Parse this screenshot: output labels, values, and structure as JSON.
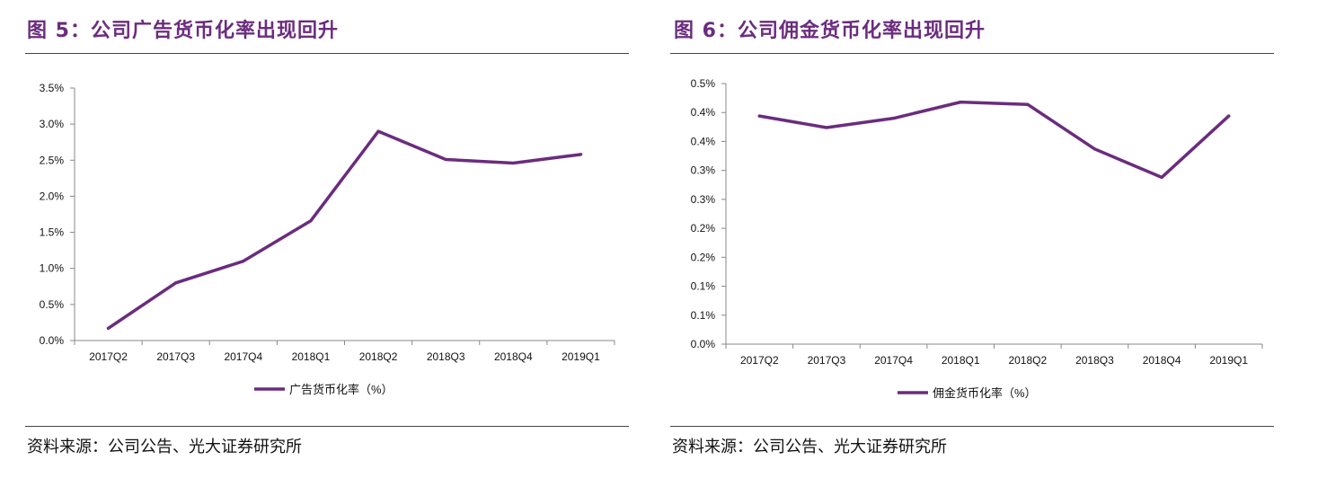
{
  "charts": [
    {
      "title": "图 5：公司广告货币化率出现回升",
      "source": "资料来源：公司公告、光大证券研究所",
      "chart_data": {
        "type": "line",
        "categories": [
          "2017Q2",
          "2017Q3",
          "2017Q4",
          "2018Q1",
          "2018Q2",
          "2018Q3",
          "2018Q4",
          "2019Q1"
        ],
        "series": [
          {
            "name": "广告货币化率（%）",
            "values": [
              0.17,
              0.8,
              1.1,
              1.66,
              2.9,
              2.51,
              2.46,
              2.58
            ],
            "color": "#6b2c7e"
          }
        ],
        "y_tick_labels": [
          "0.0%",
          "0.5%",
          "1.0%",
          "1.5%",
          "2.0%",
          "2.5%",
          "3.0%",
          "3.5%"
        ],
        "ylim": [
          0,
          3.5
        ],
        "grid": false,
        "legend_position": "bottom"
      }
    },
    {
      "title": "图 6：公司佣金货币化率出现回升",
      "source": "资料来源：公司公告、光大证券研究所",
      "chart_data": {
        "type": "line",
        "categories": [
          "2017Q2",
          "2017Q3",
          "2017Q4",
          "2018Q1",
          "2018Q2",
          "2018Q3",
          "2018Q4",
          "2019Q1"
        ],
        "series": [
          {
            "name": "佣金货币化率（%）",
            "values": [
              0.394,
              0.374,
              0.39,
              0.418,
              0.414,
              0.337,
              0.288,
              0.394
            ],
            "color": "#6b2c7e"
          }
        ],
        "y_tick_labels": [
          "0.0%",
          "0.1%",
          "0.1%",
          "0.2%",
          "0.2%",
          "0.3%",
          "0.3%",
          "0.4%",
          "0.4%",
          "0.5%"
        ],
        "ylim": [
          0,
          0.45
        ],
        "grid": false,
        "legend_position": "bottom"
      }
    }
  ]
}
